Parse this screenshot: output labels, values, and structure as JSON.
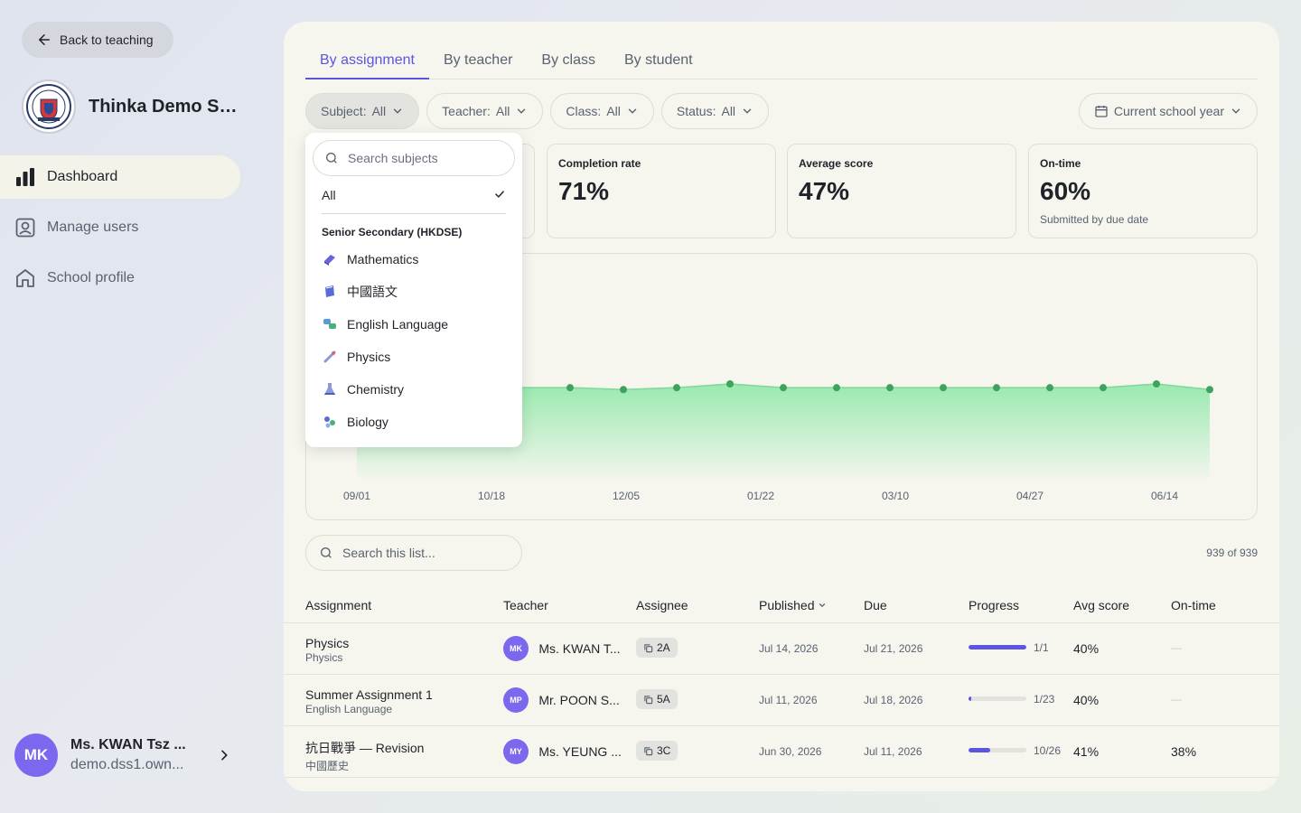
{
  "sidebar": {
    "back_label": "Back to teaching",
    "school_name": "Thinka Demo Se...",
    "nav": [
      {
        "label": "Dashboard",
        "icon": "bar-chart-icon",
        "active": true
      },
      {
        "label": "Manage users",
        "icon": "user-card-icon",
        "active": false
      },
      {
        "label": "School profile",
        "icon": "home-icon",
        "active": false
      }
    ],
    "user": {
      "initials": "MK",
      "name": "Ms. KWAN Tsz ...",
      "email": "demo.dss1.own..."
    }
  },
  "tabs": [
    "By assignment",
    "By teacher",
    "By class",
    "By student"
  ],
  "filters": [
    {
      "label": "Subject:",
      "value": "All"
    },
    {
      "label": "Teacher:",
      "value": "All"
    },
    {
      "label": "Class:",
      "value": "All"
    },
    {
      "label": "Status:",
      "value": "All"
    }
  ],
  "year_filter": "Current school year",
  "stats": [
    {
      "label": "Completion rate",
      "value": "71%",
      "sub": ""
    },
    {
      "label": "Average score",
      "value": "47%",
      "sub": ""
    },
    {
      "label": "On-time",
      "value": "60%",
      "sub": "Submitted by due date"
    }
  ],
  "chart_data": {
    "type": "area",
    "x_ticks": [
      "09/01",
      "10/18",
      "12/05",
      "01/22",
      "03/10",
      "04/27",
      "06/14"
    ],
    "series": [
      {
        "values": [
          48,
          48,
          48,
          48,
          48,
          47,
          48,
          50,
          48,
          48,
          48,
          48,
          48,
          48,
          48,
          50,
          47
        ]
      }
    ],
    "accent_color": "#3fa35f",
    "fill_color": "#8fe8a8"
  },
  "list": {
    "search_placeholder": "Search this list...",
    "count": "939 of 939",
    "columns": [
      "Assignment",
      "Teacher",
      "Assignee",
      "Published",
      "Due",
      "Progress",
      "Avg score",
      "On-time"
    ],
    "rows": [
      {
        "title": "Physics",
        "subject": "Physics",
        "initials": "MK",
        "teacher": "Ms. KWAN T...",
        "class": "2A",
        "published": "Jul 14, 2026",
        "due": "Jul 21, 2026",
        "progress": 1.0,
        "progress_label": "1/1",
        "avg": "40%",
        "ontime": "—"
      },
      {
        "title": "Summer Assignment 1",
        "subject": "English Language",
        "initials": "MP",
        "teacher": "Mr. POON S...",
        "class": "5A",
        "published": "Jul 11, 2026",
        "due": "Jul 18, 2026",
        "progress": 0.04,
        "progress_label": "1/23",
        "avg": "40%",
        "ontime": "—"
      },
      {
        "title": "抗日戰爭 — Revision",
        "subject": "中國歷史",
        "initials": "MY",
        "teacher": "Ms. YEUNG ...",
        "class": "3C",
        "published": "Jun 30, 2026",
        "due": "Jul 11, 2026",
        "progress": 0.38,
        "progress_label": "10/26",
        "avg": "41%",
        "ontime": "38%"
      }
    ]
  },
  "dropdown": {
    "search_placeholder": "Search subjects",
    "all_label": "All",
    "group_label": "Senior Secondary (HKDSE)",
    "items": [
      "Mathematics",
      "中國語文",
      "English Language",
      "Physics",
      "Chemistry",
      "Biology"
    ]
  }
}
